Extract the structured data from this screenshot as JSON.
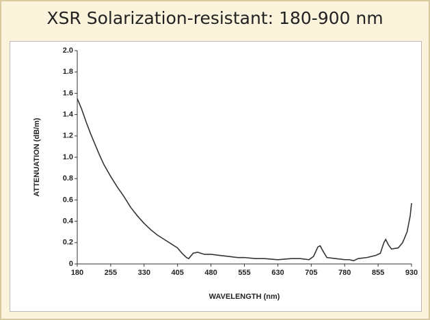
{
  "chart_data": {
    "type": "line",
    "title": "XSR Solarization-resistant: 180-900 nm",
    "xlabel": "WAVELENGTH (nm)",
    "ylabel": "ATTENUATION (dB/m)",
    "xlim": [
      180,
      930
    ],
    "ylim": [
      0,
      2
    ],
    "xticks": [
      180,
      255,
      330,
      405,
      480,
      555,
      630,
      705,
      780,
      855,
      930
    ],
    "yticks": [
      0,
      0.2,
      0.4,
      0.6,
      0.8,
      {
        "value": 1,
        "label": "1.0"
      },
      1.2,
      1.4,
      1.6,
      1.8,
      {
        "value": 2,
        "label": "2.0"
      }
    ],
    "series": [
      {
        "color": "#333333",
        "x": [
          180,
          190,
          200,
          210,
          220,
          230,
          240,
          255,
          270,
          285,
          300,
          315,
          330,
          345,
          360,
          375,
          390,
          405,
          415,
          425,
          430,
          440,
          450,
          465,
          480,
          500,
          520,
          540,
          555,
          580,
          600,
          630,
          660,
          680,
          700,
          710,
          720,
          725,
          730,
          740,
          760,
          780,
          790,
          800,
          810,
          830,
          850,
          860,
          868,
          872,
          878,
          885,
          900,
          910,
          920,
          927,
          930
        ],
        "values": [
          1.55,
          1.45,
          1.33,
          1.22,
          1.12,
          1.02,
          0.93,
          0.82,
          0.72,
          0.63,
          0.53,
          0.45,
          0.38,
          0.32,
          0.27,
          0.23,
          0.19,
          0.15,
          0.1,
          0.06,
          0.05,
          0.1,
          0.11,
          0.09,
          0.09,
          0.08,
          0.07,
          0.06,
          0.06,
          0.05,
          0.05,
          0.04,
          0.05,
          0.05,
          0.04,
          0.07,
          0.16,
          0.17,
          0.13,
          0.06,
          0.05,
          0.04,
          0.04,
          0.03,
          0.05,
          0.06,
          0.08,
          0.1,
          0.2,
          0.23,
          0.18,
          0.14,
          0.15,
          0.2,
          0.3,
          0.45,
          0.57
        ]
      }
    ]
  }
}
